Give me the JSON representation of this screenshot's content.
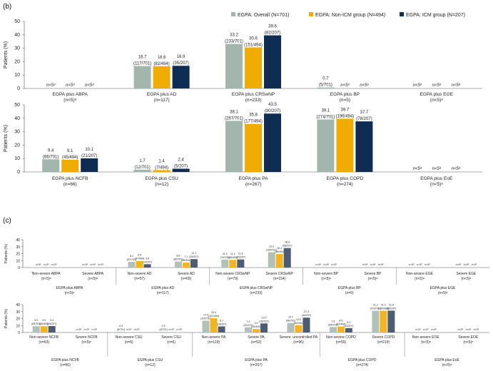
{
  "figure": {
    "panel_b_label": "(b)",
    "panel_c_label": "(c)"
  },
  "colors": {
    "overall": "#a3b6ad",
    "nonicm": "#f0ac00",
    "icm": "#0f2d52",
    "overall_c": "#b2c0ba",
    "nonicm_c": "#f2b420",
    "icm_c": "#4b5c74"
  },
  "legend": [
    {
      "key": "overall",
      "label": "EGPA: Overall (N=701)"
    },
    {
      "key": "nonicm",
      "label": "EGPA: Non-ICM group (N=494)"
    },
    {
      "key": "icm",
      "label": "EGPA: ICM group (N=207)"
    }
  ],
  "chart_data": [
    {
      "id": "b-top",
      "type": "bar",
      "ylabel": "Patients (%)",
      "ylim": [
        0,
        50
      ],
      "yticks": [
        0,
        10,
        20,
        30,
        40,
        50
      ],
      "grid": false,
      "categories": [
        {
          "name": "EGPA plus ABPA",
          "n": "(n<5)ᵃ",
          "values": [
            null,
            null,
            null
          ],
          "labels": [
            [
              "n<5ᵃ"
            ],
            [
              "n<5ᵃ"
            ],
            [
              "n<5ᵃ"
            ]
          ]
        },
        {
          "name": "EGPA plus AD",
          "n": "(n=117)",
          "values": [
            16.7,
            16.6,
            16.9
          ],
          "labels": [
            [
              "16.7",
              "(117/701)"
            ],
            [
              "16.6",
              "(82/494)"
            ],
            [
              "16.9",
              "(35/207)"
            ]
          ]
        },
        {
          "name": "EGPA plus CRSwNP",
          "n": "(n=233)",
          "values": [
            33.2,
            30.6,
            39.6
          ],
          "labels": [
            [
              "33.2",
              "(233/701)"
            ],
            [
              "30.6",
              "(151/494)"
            ],
            [
              "39.6",
              "(82/207)"
            ]
          ]
        },
        {
          "name": "EGPA plus BP",
          "n": "(n=5)",
          "values": [
            0.7,
            null,
            null
          ],
          "labels": [
            [
              "0.7",
              "(5/701)"
            ],
            [
              "n<5ᵃ"
            ],
            [
              "n<5ᵃ"
            ]
          ]
        },
        {
          "name": "EGPA plus EGE",
          "n": "(n<5)ᵃ",
          "values": [
            null,
            null,
            null
          ],
          "labels": [
            [
              "n<5ᵃ"
            ],
            [
              "n<5ᵃ"
            ],
            [
              "n<5ᵃ"
            ]
          ]
        }
      ]
    },
    {
      "id": "b-bottom",
      "type": "bar",
      "ylabel": "Patients (%)",
      "ylim": [
        0,
        50
      ],
      "yticks": [
        0,
        10,
        20,
        30,
        40,
        50
      ],
      "grid": false,
      "categories": [
        {
          "name": "EGPA plus NCFB",
          "n": "(n=66)",
          "values": [
            9.4,
            9.1,
            10.1
          ],
          "labels": [
            [
              "9.4",
              "(66/701)"
            ],
            [
              "9.1",
              "(45/494)"
            ],
            [
              "10.1",
              "(21/207)"
            ]
          ]
        },
        {
          "name": "EGPA plus CSU",
          "n": "(n=12)",
          "values": [
            1.7,
            1.4,
            2.4
          ],
          "labels": [
            [
              "1.7",
              "(12/701)"
            ],
            [
              "1.4",
              "(7/494)"
            ],
            [
              "2.4",
              "(5/207)"
            ]
          ]
        },
        {
          "name": "EGPA plus PA",
          "n": "(n=267)",
          "values": [
            38.1,
            35.8,
            43.5
          ],
          "labels": [
            [
              "38.1",
              "(267/701)"
            ],
            [
              "35.8",
              "(177/494)"
            ],
            [
              "43.5",
              "(90/207)"
            ]
          ]
        },
        {
          "name": "EGPA plus COPD",
          "n": "(n=274)",
          "values": [
            39.1,
            39.7,
            37.7
          ],
          "labels": [
            [
              "39.1",
              "(274/701)"
            ],
            [
              "39.7",
              "(196/494)"
            ],
            [
              "37.7",
              "(78/207)"
            ]
          ]
        },
        {
          "name": "EGPA plus EoE",
          "n": "(n<5)ᵃ",
          "values": [
            null,
            null,
            null
          ],
          "labels": [
            [
              "n<5ᵃ"
            ],
            [
              "n<5ᵃ"
            ],
            [
              "n<5ᵃ"
            ]
          ]
        }
      ]
    },
    {
      "id": "c-top",
      "type": "bar",
      "ylabel": "Patients (%)",
      "ylim": [
        0,
        40
      ],
      "yticks": [
        0,
        10,
        20,
        30,
        40
      ],
      "grid": false,
      "categories": [
        {
          "name": "Non-severe ABPA",
          "n": "(n<5)ᵃ",
          "values": [
            null,
            null,
            null
          ],
          "labels": [
            [
              "n<5ᵃ"
            ],
            [
              "n<5ᵃ"
            ],
            [
              "n<5ᵃ"
            ]
          ]
        },
        {
          "name": "Severe ABPA",
          "n": "(n<5)ᵃ",
          "values": [
            null,
            null,
            null
          ],
          "labels": [
            [
              "n<5ᵃ"
            ],
            [
              "n<5ᵃ"
            ],
            [
              "n<5ᵃ"
            ]
          ]
        },
        {
          "name": "Non-severe AD",
          "n": "(n=57)",
          "values": [
            8.1,
            9.5,
            4.8
          ],
          "labels": [
            [
              "8.1",
              "(57/701)"
            ],
            [
              "9.5",
              "(47/494)"
            ],
            [
              "4.8",
              "(10/207)"
            ]
          ]
        },
        {
          "name": "Severe AD",
          "n": "(n=60)",
          "values": [
            8.6,
            7.1,
            12.1
          ],
          "labels": [
            [
              "8.6",
              "(60/701)"
            ],
            [
              "7.1",
              "(35/494)"
            ],
            [
              "12.1",
              "(25/207)"
            ]
          ]
        },
        {
          "name": "Non-severe CRSwNP",
          "n": "(n=79)",
          "values": [
            11.3,
            11.1,
            11.6
          ],
          "labels": [
            [
              "11.3",
              "(79/701)"
            ],
            [
              "11.1",
              "(55/494)"
            ],
            [
              "11.6",
              "(24/207)"
            ]
          ]
        },
        {
          "name": "Severe CRSwNP",
          "n": "(n=154)",
          "values": [
            22.0,
            19.4,
            28.0
          ],
          "labels": [
            [
              "22.0",
              "(154/701)"
            ],
            [
              "19.4",
              "(96/494)"
            ],
            [
              "28.0",
              "(58/207)"
            ]
          ]
        },
        {
          "name": "Non-severe BP",
          "n": "(n<5)ᵃ",
          "values": [
            null,
            null,
            null
          ],
          "labels": [
            [
              "n<5ᵃ"
            ],
            [
              "n<5ᵃ"
            ],
            [
              "n<5ᵃ"
            ]
          ]
        },
        {
          "name": "Severe BP",
          "n": "(n<5)ᵃ",
          "values": [
            null,
            null,
            null
          ],
          "labels": [
            [
              "n<5ᵃ"
            ],
            [
              "n<5ᵃ"
            ],
            [
              "n<5ᵃ"
            ]
          ]
        },
        {
          "name": "Non-severe EGE",
          "n": "(n<5)ᵃ",
          "values": [
            null,
            null,
            null
          ],
          "labels": [
            [
              "n<5ᵃ"
            ],
            [
              "n<5ᵃ"
            ],
            [
              "n<5ᵃ"
            ]
          ]
        },
        {
          "name": "Severe EGE",
          "n": "(n<5)ᵃ",
          "values": [
            null,
            null,
            null
          ],
          "labels": [
            [
              "n<5ᵃ"
            ],
            [
              "n<5ᵃ"
            ],
            [
              "n<5ᵃ"
            ]
          ]
        }
      ],
      "groups": [
        {
          "name": "EGPA plus ABPA",
          "n": "(n<5)ᵃ",
          "span": [
            0,
            1
          ]
        },
        {
          "name": "EGPA plus AD",
          "n": "(n=117)",
          "span": [
            2,
            3
          ]
        },
        {
          "name": "EGPA plus CRSwNP",
          "n": "(n=233)",
          "span": [
            4,
            5
          ]
        },
        {
          "name": "EGPA plus BP",
          "n": "(n=5)",
          "span": [
            6,
            7
          ]
        },
        {
          "name": "EGPA plus EGE",
          "n": "(n<5)ᵃ",
          "span": [
            8,
            9
          ]
        }
      ]
    },
    {
      "id": "c-bottom",
      "type": "bar",
      "ylabel": "Patients (%)",
      "ylim": [
        0,
        40
      ],
      "yticks": [
        0,
        10,
        20,
        30,
        40
      ],
      "grid": false,
      "categories": [
        {
          "name": "Non-severe NCFB",
          "n": "(n=63)",
          "values": [
            9.0,
            9.0,
            9.2
          ],
          "labels": [
            [
              "9.0",
              "(63/701)"
            ],
            [
              "9.0",
              "(44/494)"
            ],
            [
              "9.2",
              "(19/207)"
            ]
          ]
        },
        {
          "name": "Severe NCFB",
          "n": "(n<5)ᵃ",
          "values": [
            null,
            null,
            null
          ],
          "labels": [
            [
              "n<5ᵃ"
            ],
            [
              "n<5ᵃ"
            ],
            [
              "n<5ᵃ"
            ]
          ]
        },
        {
          "name": "Non-severe CSU",
          "n": "(n=6)",
          "values": [
            0.9,
            null,
            null
          ],
          "labels": [
            [
              "0.9",
              "(6/701)"
            ],
            [
              "n<5ᵃ"
            ],
            [
              "n<5ᵃ"
            ]
          ]
        },
        {
          "name": "Severe CSU",
          "n": "(n=6)",
          "values": [
            0.9,
            null,
            null
          ],
          "labels": [
            [
              "0.9",
              "(6/701)"
            ],
            [
              "n<5ᵃ"
            ],
            [
              "n<5ᵃ"
            ]
          ]
        },
        {
          "name": "Non-severe PA",
          "n": "(n=119)",
          "values": [
            17.0,
            20.4,
            8.7
          ],
          "labels": [
            [
              "17.0",
              "(119/701)"
            ],
            [
              "20.4",
              "(101/494)"
            ],
            [
              "8.7",
              "(18/207)"
            ]
          ]
        },
        {
          "name": "Severe PA",
          "n": "(n=52)",
          "values": [
            7.4,
            4.9,
            13.0
          ],
          "labels": [
            [
              "7.4",
              "(52/701)"
            ],
            [
              "4.9",
              "(24/494)"
            ],
            [
              "13.0",
              "(28/207)"
            ]
          ]
        },
        {
          "name": "Severe, uncontrolled PA",
          "n": "(n=96)",
          "values": [
            13.7,
            10.5,
            21.3
          ],
          "labels": [
            [
              "13.7",
              "(96/701)"
            ],
            [
              "10.5",
              "(52/494)"
            ],
            [
              "21.3",
              "(44/207)"
            ]
          ]
        },
        {
          "name": "Non-severe COPD",
          "n": "(n=55)",
          "values": [
            7.8,
            8.5,
            6.3
          ],
          "labels": [
            [
              "7.8",
              "(55/701)"
            ],
            [
              "8.5",
              "(42/494)"
            ],
            [
              "6.3",
              "(13/207)"
            ]
          ]
        },
        {
          "name": "Severe COPD",
          "n": "(n=219)",
          "values": [
            31.2,
            31.2,
            31.4
          ],
          "labels": [
            [
              "31.2",
              "(219/701)"
            ],
            [
              "31.2",
              "(154/494)"
            ],
            [
              "31.4",
              "(65/207)"
            ]
          ]
        },
        {
          "name": "Non-severe EOE",
          "n": "(n<5)ᵃ",
          "values": [
            null,
            null,
            null
          ],
          "labels": [
            [
              "n<5ᵃ"
            ],
            [
              "n<5ᵃ"
            ],
            [
              "n<5ᵃ"
            ]
          ]
        },
        {
          "name": "Severe EOE",
          "n": "(n<5)ᵃ",
          "values": [
            null,
            null,
            null
          ],
          "labels": [
            [
              "n<5ᵃ"
            ],
            [
              "n<5ᵃ"
            ],
            [
              "n<5ᵃ"
            ]
          ]
        }
      ],
      "groups": [
        {
          "name": "EGPA plus NCFB",
          "n": "(n=66)",
          "span": [
            0,
            1
          ]
        },
        {
          "name": "EGPA plus CSU",
          "n": "(n=12)",
          "span": [
            2,
            3
          ]
        },
        {
          "name": "EGPA plus PA",
          "n": "(n=267)",
          "span": [
            4,
            6
          ]
        },
        {
          "name": "EGPA plus COPD",
          "n": "(n=274)",
          "span": [
            7,
            8
          ]
        },
        {
          "name": "EGPA plus EoE",
          "n": "(n<5)ᵃ",
          "span": [
            9,
            10
          ]
        }
      ]
    }
  ]
}
